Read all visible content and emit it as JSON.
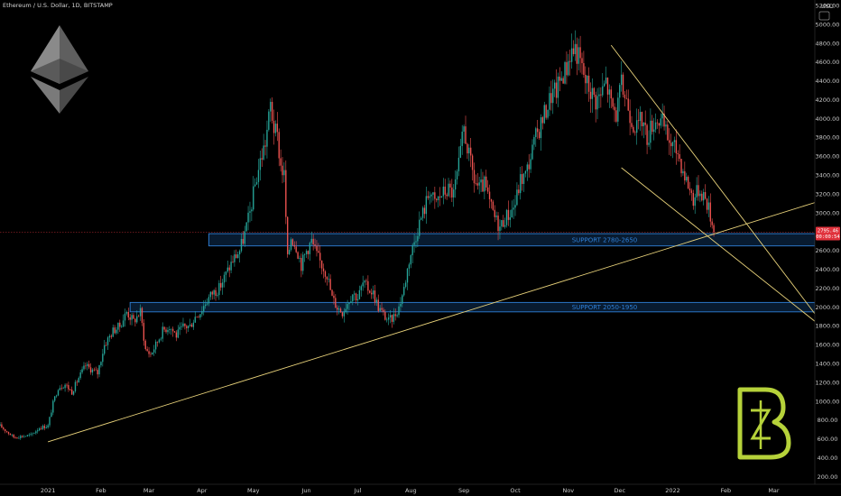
{
  "header": {
    "title": "Ethereum / U.S. Dollar, 1D, BITSTAMP",
    "currency": "USD"
  },
  "price_badge": {
    "price": "2795.46",
    "countdown": "00:00:54",
    "color": "#e0323c"
  },
  "colors": {
    "background": "#000000",
    "up_candle": "#26a69a",
    "down_candle": "#ef5350",
    "trendline": "#e8d27a",
    "zone_border": "#2f7fd6",
    "zone_fill": "#0c2a4a",
    "brand_logo": "#b6d23a"
  },
  "logos": {
    "top_left": "ethereum-diamond-icon",
    "bottom_right": "bz-brand-logo"
  },
  "chart_data": {
    "type": "candlestick",
    "title": "Ethereum / U.S. Dollar, 1D, BITSTAMP",
    "ylabel": "USD",
    "xlabel": "",
    "ylim": [
      120,
      5260
    ],
    "y_ticks": [
      200,
      400,
      600,
      800,
      1000,
      1200,
      1400,
      1600,
      1800,
      2000,
      2200,
      2400,
      2600,
      2800,
      3000,
      3200,
      3400,
      3600,
      3800,
      4000,
      4200,
      4400,
      4600,
      4800,
      5000,
      5200
    ],
    "x_ticks": [
      {
        "day": 0,
        "label": "2021"
      },
      {
        "day": 31,
        "label": "Feb"
      },
      {
        "day": 59,
        "label": "Mar"
      },
      {
        "day": 90,
        "label": "Apr"
      },
      {
        "day": 120,
        "label": "May"
      },
      {
        "day": 151,
        "label": "Jun"
      },
      {
        "day": 181,
        "label": "Jul"
      },
      {
        "day": 212,
        "label": "Aug"
      },
      {
        "day": 243,
        "label": "Sep"
      },
      {
        "day": 273,
        "label": "Oct"
      },
      {
        "day": 304,
        "label": "Nov"
      },
      {
        "day": 334,
        "label": "Dec"
      },
      {
        "day": 365,
        "label": "2022"
      },
      {
        "day": 396,
        "label": "Feb"
      },
      {
        "day": 424,
        "label": "Mar"
      }
    ],
    "xlim_days": [
      -28,
      448
    ],
    "current_price": 2795.46,
    "grid": false,
    "price_path": [
      [
        -28,
        740
      ],
      [
        -20,
        620
      ],
      [
        -10,
        640
      ],
      [
        -5,
        720
      ],
      [
        0,
        740
      ],
      [
        3,
        980
      ],
      [
        6,
        1150
      ],
      [
        10,
        1180
      ],
      [
        14,
        1100
      ],
      [
        18,
        1250
      ],
      [
        22,
        1380
      ],
      [
        26,
        1330
      ],
      [
        29,
        1300
      ],
      [
        33,
        1600
      ],
      [
        38,
        1750
      ],
      [
        42,
        1800
      ],
      [
        46,
        1950
      ],
      [
        50,
        1850
      ],
      [
        54,
        1950
      ],
      [
        57,
        1550
      ],
      [
        60,
        1500
      ],
      [
        63,
        1600
      ],
      [
        67,
        1750
      ],
      [
        71,
        1800
      ],
      [
        75,
        1700
      ],
      [
        79,
        1790
      ],
      [
        83,
        1800
      ],
      [
        86,
        1900
      ],
      [
        89,
        1950
      ],
      [
        92,
        2050
      ],
      [
        96,
        2150
      ],
      [
        100,
        2200
      ],
      [
        104,
        2350
      ],
      [
        108,
        2500
      ],
      [
        112,
        2600
      ],
      [
        115,
        2780
      ],
      [
        118,
        3000
      ],
      [
        121,
        3300
      ],
      [
        124,
        3550
      ],
      [
        127,
        3750
      ],
      [
        129,
        4000
      ],
      [
        130,
        4150
      ],
      [
        132,
        3900
      ],
      [
        134,
        3800
      ],
      [
        136,
        3500
      ],
      [
        138,
        3400
      ],
      [
        140,
        2500
      ],
      [
        142,
        2750
      ],
      [
        145,
        2650
      ],
      [
        148,
        2450
      ],
      [
        151,
        2600
      ],
      [
        154,
        2700
      ],
      [
        157,
        2550
      ],
      [
        160,
        2450
      ],
      [
        163,
        2350
      ],
      [
        166,
        2100
      ],
      [
        169,
        2000
      ],
      [
        172,
        1950
      ],
      [
        175,
        2050
      ],
      [
        178,
        2150
      ],
      [
        181,
        2100
      ],
      [
        184,
        2250
      ],
      [
        187,
        2200
      ],
      [
        190,
        2150
      ],
      [
        193,
        2000
      ],
      [
        196,
        1920
      ],
      [
        199,
        1850
      ],
      [
        202,
        1900
      ],
      [
        205,
        2000
      ],
      [
        208,
        2200
      ],
      [
        211,
        2500
      ],
      [
        214,
        2700
      ],
      [
        217,
        2900
      ],
      [
        220,
        3050
      ],
      [
        223,
        3250
      ],
      [
        226,
        3100
      ],
      [
        230,
        3200
      ],
      [
        234,
        3250
      ],
      [
        237,
        3200
      ],
      [
        240,
        3500
      ],
      [
        243,
        3900
      ],
      [
        246,
        3600
      ],
      [
        249,
        3350
      ],
      [
        252,
        3250
      ],
      [
        255,
        3300
      ],
      [
        258,
        3100
      ],
      [
        261,
        2950
      ],
      [
        264,
        2850
      ],
      [
        267,
        2950
      ],
      [
        270,
        3000
      ],
      [
        273,
        3100
      ],
      [
        276,
        3350
      ],
      [
        279,
        3400
      ],
      [
        282,
        3600
      ],
      [
        285,
        3800
      ],
      [
        288,
        3950
      ],
      [
        291,
        4100
      ],
      [
        294,
        4250
      ],
      [
        297,
        4300
      ],
      [
        300,
        4450
      ],
      [
        303,
        4550
      ],
      [
        305,
        4700
      ],
      [
        308,
        4750
      ],
      [
        311,
        4600
      ],
      [
        314,
        4400
      ],
      [
        317,
        4300
      ],
      [
        320,
        4200
      ],
      [
        323,
        4250
      ],
      [
        326,
        4400
      ],
      [
        329,
        4150
      ],
      [
        332,
        4050
      ],
      [
        335,
        4350
      ],
      [
        338,
        4200
      ],
      [
        341,
        4000
      ],
      [
        344,
        3900
      ],
      [
        347,
        4000
      ],
      [
        350,
        3800
      ],
      [
        353,
        3950
      ],
      [
        356,
        4000
      ],
      [
        359,
        3950
      ],
      [
        362,
        3800
      ],
      [
        365,
        3700
      ],
      [
        368,
        3650
      ],
      [
        371,
        3450
      ],
      [
        374,
        3300
      ],
      [
        377,
        3150
      ],
      [
        380,
        3250
      ],
      [
        383,
        3200
      ],
      [
        386,
        3050
      ],
      [
        389,
        2800
      ]
    ],
    "support_zones": [
      {
        "label": "SUPPORT 2780-2650",
        "low": 2650,
        "high": 2780,
        "day_start": 94
      },
      {
        "label": "SUPPORT 2050-1950",
        "low": 1950,
        "high": 2050,
        "day_start": 48
      }
    ],
    "trendlines": [
      {
        "from": {
          "day": 0,
          "price": 570
        },
        "to": {
          "day": 448,
          "price": 3110
        }
      },
      {
        "from": {
          "day": 329,
          "price": 4780
        },
        "to": {
          "day": 448,
          "price": 1930
        }
      },
      {
        "from": {
          "day": 335,
          "price": 3480
        },
        "to": {
          "day": 448,
          "price": 1850
        }
      }
    ]
  }
}
